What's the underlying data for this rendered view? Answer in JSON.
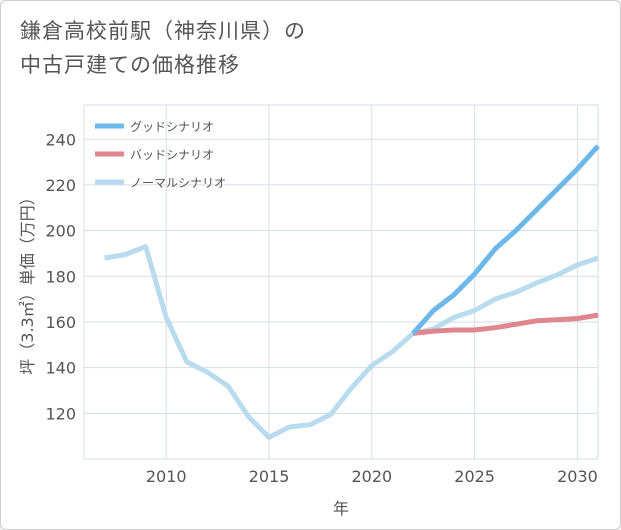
{
  "title_lines": [
    "鎌倉高校前駅（神奈川県）の",
    "中古戸建ての価格推移"
  ],
  "chart_data": {
    "type": "line",
    "xlabel": "年",
    "ylabel": "坪（3.3㎡）単価（万円）",
    "xlim": [
      2006,
      2031
    ],
    "ylim": [
      100,
      255
    ],
    "xticks": [
      2010,
      2015,
      2020,
      2025,
      2030
    ],
    "yticks": [
      120,
      140,
      160,
      180,
      200,
      220,
      240
    ],
    "grid": true,
    "legend_position": "top-left",
    "series": [
      {
        "name": "グッドシナリオ",
        "color": "#6cb8ea",
        "x": [
          2022,
          2023,
          2024,
          2025,
          2026,
          2027,
          2028,
          2029,
          2030,
          2031
        ],
        "y": [
          155,
          165,
          172,
          181,
          192,
          200,
          209,
          218,
          227,
          237
        ]
      },
      {
        "name": "バッドシナリオ",
        "color": "#e0868e",
        "x": [
          2022,
          2023,
          2024,
          2025,
          2026,
          2027,
          2028,
          2029,
          2030,
          2031
        ],
        "y": [
          155,
          156,
          156.5,
          156.5,
          157.5,
          159,
          160.5,
          161,
          161.5,
          163
        ]
      },
      {
        "name": "ノーマルシナリオ",
        "color": "#b8dcee",
        "x": [
          2007,
          2008,
          2009,
          2010,
          2011,
          2012,
          2013,
          2014,
          2015,
          2016,
          2017,
          2018,
          2019,
          2020,
          2021,
          2022,
          2023,
          2024,
          2025,
          2026,
          2027,
          2028,
          2029,
          2030,
          2031
        ],
        "y": [
          188,
          189.5,
          193,
          162,
          142.5,
          138,
          132,
          118.5,
          109.5,
          114,
          115,
          119.5,
          131,
          141,
          147,
          155,
          157,
          162,
          165,
          170,
          173,
          177,
          180.5,
          185,
          188
        ]
      }
    ]
  }
}
